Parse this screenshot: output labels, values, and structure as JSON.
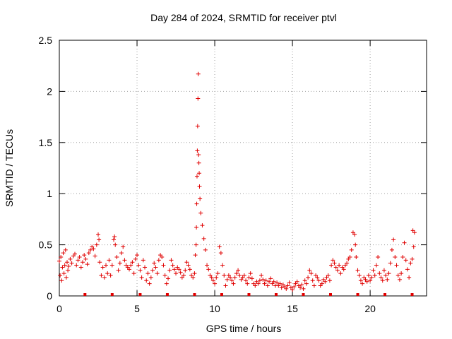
{
  "chart_data": {
    "type": "scatter",
    "title": "Day 284 of 2024, SRMTID for receiver ptvl",
    "xlabel": "GPS time / hours",
    "ylabel": "SRMTID / TECUs",
    "xlim": [
      0,
      23.63
    ],
    "ylim": [
      0,
      2.5
    ],
    "x_ticks": [
      0,
      5,
      10,
      15,
      20
    ],
    "x_tick_labels": [
      "0",
      "5",
      "10",
      "15",
      "20"
    ],
    "y_ticks": [
      0,
      0.5,
      1,
      1.5,
      2,
      2.5
    ],
    "y_tick_labels": [
      "0",
      "0.5",
      "1",
      "1.5",
      "2",
      "2.5"
    ],
    "grid": true,
    "marker": "plus",
    "color": "#e00000",
    "series": [
      {
        "name": "SRMTID",
        "x": [
          0.0,
          0.05,
          0.1,
          0.15,
          0.2,
          0.25,
          0.3,
          0.35,
          0.4,
          0.45,
          0.5,
          0.55,
          0.6,
          0.7,
          0.8,
          0.9,
          1.0,
          1.1,
          1.2,
          1.3,
          1.4,
          1.5,
          1.6,
          1.7,
          1.8,
          1.9,
          2.0,
          2.1,
          2.2,
          2.3,
          2.4,
          2.5,
          2.55,
          2.6,
          2.7,
          2.8,
          2.9,
          3.0,
          3.1,
          3.2,
          3.3,
          3.4,
          3.5,
          3.55,
          3.6,
          3.7,
          3.8,
          3.9,
          4.0,
          4.1,
          4.2,
          4.3,
          4.4,
          4.5,
          4.6,
          4.7,
          4.8,
          4.9,
          5.0,
          5.1,
          5.2,
          5.3,
          5.4,
          5.5,
          5.6,
          5.7,
          5.8,
          5.9,
          6.0,
          6.1,
          6.2,
          6.3,
          6.4,
          6.5,
          6.6,
          6.7,
          6.8,
          6.9,
          7.0,
          7.1,
          7.2,
          7.3,
          7.4,
          7.5,
          7.6,
          7.7,
          7.8,
          7.9,
          8.0,
          8.1,
          8.2,
          8.3,
          8.4,
          8.5,
          8.6,
          8.7,
          8.75,
          8.8,
          8.82,
          8.84,
          8.86,
          8.88,
          8.9,
          8.92,
          8.94,
          8.96,
          8.98,
          9.0,
          9.02,
          9.05,
          9.1,
          9.2,
          9.3,
          9.4,
          9.5,
          9.6,
          9.7,
          9.8,
          9.9,
          10.0,
          10.1,
          10.2,
          10.3,
          10.4,
          10.5,
          10.6,
          10.7,
          10.8,
          10.9,
          11.0,
          11.1,
          11.2,
          11.3,
          11.4,
          11.5,
          11.6,
          11.7,
          11.8,
          11.9,
          12.0,
          12.1,
          12.2,
          12.3,
          12.4,
          12.5,
          12.6,
          12.7,
          12.8,
          12.9,
          13.0,
          13.1,
          13.2,
          13.3,
          13.4,
          13.5,
          13.6,
          13.7,
          13.8,
          13.9,
          14.0,
          14.1,
          14.2,
          14.3,
          14.4,
          14.5,
          14.6,
          14.7,
          14.8,
          14.9,
          15.0,
          15.1,
          15.2,
          15.3,
          15.4,
          15.5,
          15.6,
          15.7,
          15.8,
          15.9,
          16.0,
          16.1,
          16.2,
          16.3,
          16.4,
          16.5,
          16.6,
          16.7,
          16.8,
          16.9,
          17.0,
          17.1,
          17.2,
          17.3,
          17.4,
          17.5,
          17.6,
          17.7,
          17.8,
          17.9,
          18.0,
          18.1,
          18.2,
          18.3,
          18.4,
          18.5,
          18.6,
          18.7,
          18.8,
          18.9,
          19.0,
          19.05,
          19.1,
          19.2,
          19.3,
          19.4,
          19.5,
          19.6,
          19.7,
          19.8,
          19.9,
          20.0,
          20.1,
          20.2,
          20.3,
          20.4,
          20.5,
          20.6,
          20.7,
          20.8,
          20.9,
          21.0,
          21.1,
          21.2,
          21.3,
          21.4,
          21.5,
          21.6,
          21.7,
          21.8,
          21.9,
          22.0,
          22.1,
          22.2,
          22.3,
          22.4,
          22.5,
          22.6,
          22.7,
          22.75,
          22.8,
          22.85
        ],
        "y": [
          0.34,
          0.2,
          0.38,
          0.15,
          0.28,
          0.42,
          0.22,
          0.3,
          0.45,
          0.18,
          0.33,
          0.25,
          0.29,
          0.36,
          0.32,
          0.39,
          0.41,
          0.3,
          0.35,
          0.38,
          0.28,
          0.33,
          0.4,
          0.36,
          0.31,
          0.42,
          0.45,
          0.48,
          0.46,
          0.39,
          0.5,
          0.6,
          0.55,
          0.33,
          0.2,
          0.28,
          0.18,
          0.3,
          0.22,
          0.35,
          0.2,
          0.3,
          0.55,
          0.58,
          0.5,
          0.38,
          0.25,
          0.32,
          0.42,
          0.48,
          0.35,
          0.3,
          0.28,
          0.26,
          0.3,
          0.33,
          0.22,
          0.36,
          0.4,
          0.3,
          0.25,
          0.18,
          0.35,
          0.28,
          0.15,
          0.22,
          0.12,
          0.18,
          0.25,
          0.32,
          0.28,
          0.22,
          0.35,
          0.4,
          0.38,
          0.3,
          0.2,
          0.12,
          0.17,
          0.25,
          0.35,
          0.3,
          0.26,
          0.22,
          0.28,
          0.26,
          0.23,
          0.18,
          0.2,
          0.25,
          0.33,
          0.3,
          0.26,
          0.2,
          0.18,
          0.22,
          0.4,
          0.5,
          0.67,
          0.9,
          1.17,
          1.42,
          1.66,
          1.93,
          2.17,
          1.38,
          1.3,
          1.2,
          1.07,
          0.95,
          0.81,
          0.69,
          0.56,
          0.45,
          0.3,
          0.26,
          0.2,
          0.18,
          0.15,
          0.12,
          0.18,
          0.22,
          0.48,
          0.42,
          0.3,
          0.2,
          0.1,
          0.16,
          0.2,
          0.18,
          0.15,
          0.12,
          0.18,
          0.22,
          0.25,
          0.2,
          0.16,
          0.18,
          0.2,
          0.15,
          0.12,
          0.18,
          0.22,
          0.17,
          0.12,
          0.1,
          0.14,
          0.12,
          0.15,
          0.2,
          0.16,
          0.12,
          0.15,
          0.1,
          0.14,
          0.17,
          0.12,
          0.14,
          0.1,
          0.13,
          0.1,
          0.12,
          0.08,
          0.11,
          0.09,
          0.07,
          0.1,
          0.13,
          0.08,
          0.06,
          0.09,
          0.12,
          0.14,
          0.1,
          0.08,
          0.11,
          0.07,
          0.15,
          0.12,
          0.18,
          0.25,
          0.22,
          0.15,
          0.1,
          0.2,
          0.18,
          0.15,
          0.1,
          0.12,
          0.16,
          0.14,
          0.18,
          0.2,
          0.15,
          0.3,
          0.35,
          0.32,
          0.28,
          0.25,
          0.3,
          0.22,
          0.28,
          0.26,
          0.3,
          0.32,
          0.36,
          0.38,
          0.45,
          0.62,
          0.6,
          0.5,
          0.38,
          0.25,
          0.2,
          0.15,
          0.12,
          0.18,
          0.16,
          0.14,
          0.2,
          0.15,
          0.18,
          0.25,
          0.2,
          0.3,
          0.38,
          0.22,
          0.18,
          0.15,
          0.25,
          0.2,
          0.16,
          0.22,
          0.32,
          0.45,
          0.55,
          0.38,
          0.3,
          0.2,
          0.16,
          0.22,
          0.38,
          0.52,
          0.35,
          0.26,
          0.18,
          0.32,
          0.36,
          0.64,
          0.48,
          0.62
        ]
      }
    ],
    "baseline_markers_x": [
      1.65,
      3.4,
      5.2,
      6.95,
      8.7,
      10.45,
      12.2,
      13.95,
      15.7,
      17.45,
      19.2,
      20.95,
      22.7
    ]
  }
}
